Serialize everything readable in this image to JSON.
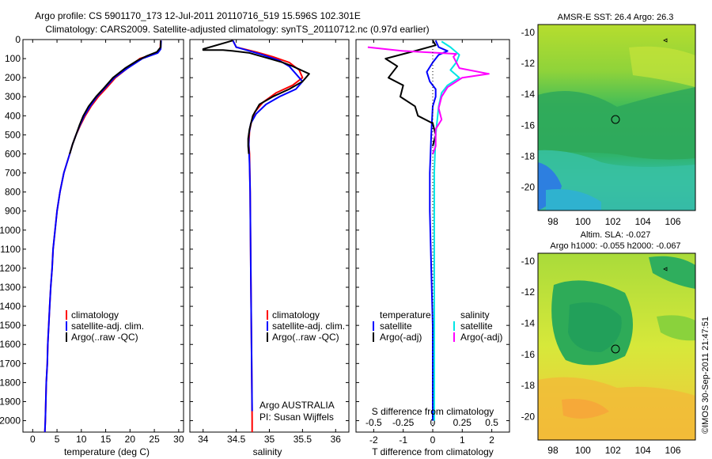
{
  "header": {
    "line1": "Argo profile: CS 5901170_173 12-Jul-2011 20110716_519 15.596S 102.301E",
    "line2": "Climatology: CARS2009. Satellite-adjusted climatology: synTS_20110712.nc (0.97d earlier)"
  },
  "right_titles": {
    "sst": "AMSR-E SST: 26.4  Argo: 26.3",
    "sla1": "Altim. SLA: -0.027",
    "sla2": "Argo h1000: -0.055 h2000: -0.067"
  },
  "side_text": "©IMOS 30-Sep-2011 21:47:51",
  "colors": {
    "clim": "#ff0000",
    "sat": "#0000ff",
    "argo": "#000000",
    "sat_s": "#00e5e5",
    "argo_s": "#ff00ff"
  },
  "chart_data": [
    {
      "type": "line",
      "xlabel": "temperature (deg C)",
      "ylabel": "",
      "xlim": [
        -2,
        31
      ],
      "ylim": [
        2060,
        0
      ],
      "xticks": [
        0,
        5,
        10,
        15,
        20,
        25,
        30
      ],
      "yticks": [
        0,
        100,
        200,
        300,
        400,
        500,
        600,
        700,
        800,
        900,
        1000,
        1100,
        1200,
        1300,
        1400,
        1500,
        1600,
        1700,
        1800,
        1900,
        2000
      ],
      "legend": {
        "position": "lower-left",
        "entries": [
          "climatology",
          "satellite-adj. clim.",
          "Argo(..raw -QC)"
        ]
      },
      "series": [
        {
          "name": "climatology",
          "color": "#ff0000",
          "points": [
            [
              26.3,
              5
            ],
            [
              26.2,
              50
            ],
            [
              25.5,
              70
            ],
            [
              22,
              100
            ],
            [
              19.5,
              150
            ],
            [
              17,
              200
            ],
            [
              15.3,
              250
            ],
            [
              13.5,
              300
            ],
            [
              12,
              350
            ],
            [
              10.8,
              400
            ],
            [
              9.8,
              450
            ],
            [
              8.9,
              500
            ],
            [
              8.2,
              550
            ],
            [
              7.6,
              600
            ],
            [
              6.4,
              700
            ],
            [
              5.6,
              800
            ],
            [
              5,
              900
            ],
            [
              4.6,
              1000
            ],
            [
              4.2,
              1100
            ],
            [
              4,
              1200
            ],
            [
              3.7,
              1300
            ],
            [
              3.5,
              1400
            ],
            [
              3.3,
              1500
            ],
            [
              3.1,
              1600
            ],
            [
              3,
              1700
            ],
            [
              2.8,
              1800
            ],
            [
              2.7,
              1900
            ],
            [
              2.6,
              2000
            ],
            [
              2.5,
              2060
            ]
          ]
        },
        {
          "name": "satellite-adj. clim.",
          "color": "#0000ff",
          "points": [
            [
              26.4,
              5
            ],
            [
              26.3,
              50
            ],
            [
              25.7,
              70
            ],
            [
              22.5,
              100
            ],
            [
              19.5,
              150
            ],
            [
              16.8,
              200
            ],
            [
              15,
              250
            ],
            [
              13.2,
              300
            ],
            [
              11.8,
              350
            ],
            [
              10.6,
              400
            ],
            [
              9.7,
              450
            ],
            [
              8.9,
              500
            ],
            [
              8.2,
              550
            ],
            [
              7.6,
              600
            ],
            [
              6.4,
              700
            ],
            [
              5.6,
              800
            ],
            [
              5,
              900
            ],
            [
              4.6,
              1000
            ],
            [
              4.2,
              1100
            ],
            [
              4,
              1200
            ],
            [
              3.7,
              1300
            ],
            [
              3.5,
              1400
            ],
            [
              3.3,
              1500
            ],
            [
              3.1,
              1600
            ],
            [
              3,
              1700
            ],
            [
              2.8,
              1800
            ],
            [
              2.7,
              1900
            ],
            [
              2.6,
              2000
            ],
            [
              2.5,
              2060
            ]
          ]
        },
        {
          "name": "Argo(..raw -QC)",
          "color": "#000000",
          "points": [
            [
              26.3,
              5
            ],
            [
              26.3,
              40
            ],
            [
              25.5,
              65
            ],
            [
              23.5,
              85
            ],
            [
              21.5,
              110
            ],
            [
              19,
              150
            ],
            [
              16.5,
              200
            ],
            [
              14.8,
              250
            ],
            [
              13,
              300
            ],
            [
              11.5,
              350
            ],
            [
              10.4,
              400
            ],
            [
              9.6,
              450
            ],
            [
              8.9,
              500
            ],
            [
              8.2,
              550
            ],
            [
              7.6,
              600
            ]
          ]
        }
      ]
    },
    {
      "type": "line",
      "xlabel": "salinity",
      "xlim": [
        33.8,
        36.2
      ],
      "ylim": [
        2060,
        0
      ],
      "xticks": [
        34,
        34.5,
        35,
        35.5,
        36
      ],
      "legend": {
        "position": "lower-left",
        "entries": [
          "climatology",
          "satellite-adj. clim.",
          "Argo(..raw -QC)"
        ]
      },
      "annotations": [
        "Argo AUSTRALIA",
        "PI: Susan Wijffels"
      ],
      "series": [
        {
          "name": "climatology",
          "color": "#ff0000",
          "points": [
            [
              34.45,
              5
            ],
            [
              34.5,
              40
            ],
            [
              34.8,
              65
            ],
            [
              35.05,
              90
            ],
            [
              35.3,
              120
            ],
            [
              35.45,
              160
            ],
            [
              35.5,
              200
            ],
            [
              35.35,
              240
            ],
            [
              35.1,
              280
            ],
            [
              34.9,
              330
            ],
            [
              34.78,
              380
            ],
            [
              34.73,
              430
            ],
            [
              34.7,
              480
            ],
            [
              34.69,
              550
            ],
            [
              34.7,
              600
            ],
            [
              34.71,
              800
            ],
            [
              34.72,
              1200
            ],
            [
              34.73,
              1600
            ],
            [
              34.74,
              2000
            ],
            [
              34.74,
              2060
            ]
          ]
        },
        {
          "name": "satellite-adj. clim.",
          "color": "#0000ff",
          "points": [
            [
              34.45,
              5
            ],
            [
              34.5,
              40
            ],
            [
              34.7,
              60
            ],
            [
              34.9,
              80
            ],
            [
              35.15,
              110
            ],
            [
              35.3,
              140
            ],
            [
              35.4,
              180
            ],
            [
              35.5,
              220
            ],
            [
              35.4,
              260
            ],
            [
              35.15,
              300
            ],
            [
              34.95,
              340
            ],
            [
              34.8,
              390
            ],
            [
              34.72,
              440
            ],
            [
              34.69,
              500
            ],
            [
              34.69,
              560
            ],
            [
              34.7,
              650
            ],
            [
              34.71,
              800
            ],
            [
              34.72,
              1200
            ],
            [
              34.73,
              1600
            ],
            [
              34.74,
              1950
            ]
          ]
        },
        {
          "name": "Argo(..raw -QC)",
          "color": "#000000",
          "points": [
            [
              34.45,
              5
            ],
            [
              34,
              50
            ],
            [
              34.0,
              55
            ],
            [
              34.3,
              55
            ],
            [
              34.45,
              60
            ],
            [
              34.7,
              70
            ],
            [
              35.0,
              100
            ],
            [
              35.2,
              120
            ],
            [
              35.35,
              140
            ],
            [
              35.6,
              180
            ],
            [
              35.5,
              220
            ],
            [
              35.3,
              260
            ],
            [
              35.05,
              300
            ],
            [
              34.85,
              340
            ],
            [
              34.75,
              400
            ],
            [
              34.7,
              470
            ],
            [
              34.68,
              520
            ],
            [
              34.68,
              560
            ],
            [
              34.69,
              600
            ]
          ]
        }
      ]
    },
    {
      "type": "line",
      "xlabel": "T difference from climatology",
      "x2label": "S difference from climatology",
      "xlim": [
        -2.6,
        2.6
      ],
      "ylim": [
        2060,
        0
      ],
      "xticks": [
        -2,
        -1,
        0,
        1,
        2
      ],
      "x2ticks": [
        "-0.5",
        "-0.25",
        "0",
        "0.25",
        "0.5"
      ],
      "x2tick_values": [
        -2,
        -1,
        0,
        1,
        2
      ],
      "legend": {
        "position": "lower",
        "entries": [
          "temperature",
          "satellite",
          "Argo(-adj)",
          "salinity",
          "satellite",
          "Argo(-adj)"
        ]
      },
      "series": [
        {
          "name": "satellite",
          "color": "#0000ff",
          "points": [
            [
              0.1,
              5
            ],
            [
              0.2,
              40
            ],
            [
              0.5,
              60
            ],
            [
              0.2,
              80
            ],
            [
              0,
              120
            ],
            [
              -0.2,
              170
            ],
            [
              -0.1,
              220
            ],
            [
              0.1,
              260
            ],
            [
              0.1,
              300
            ],
            [
              0,
              350
            ],
            [
              -0.05,
              500
            ],
            [
              -0.1,
              700
            ],
            [
              -0.1,
              900
            ],
            [
              -0.05,
              1200
            ],
            [
              0,
              1500
            ],
            [
              0,
              2000
            ]
          ]
        },
        {
          "name": "Argo(-adj)",
          "color": "#000000",
          "points": [
            [
              0,
              5
            ],
            [
              0.1,
              30
            ],
            [
              -0.6,
              60
            ],
            [
              -1.6,
              100
            ],
            [
              -1.2,
              140
            ],
            [
              -1.5,
              200
            ],
            [
              -1.0,
              240
            ],
            [
              -1.1,
              300
            ],
            [
              -0.6,
              350
            ],
            [
              -0.5,
              400
            ],
            [
              0,
              440
            ],
            [
              0.1,
              500
            ],
            [
              0,
              560
            ]
          ]
        },
        {
          "name": "satellite",
          "color": "#00e5e5",
          "points": [
            [
              0.3,
              10
            ],
            [
              0.6,
              40
            ],
            [
              0.9,
              80
            ],
            [
              0.8,
              120
            ],
            [
              0.6,
              160
            ],
            [
              0.9,
              200
            ],
            [
              0.5,
              240
            ],
            [
              0.3,
              280
            ],
            [
              0.2,
              350
            ],
            [
              0.1,
              500
            ],
            [
              0.05,
              700
            ],
            [
              0.05,
              1000
            ],
            [
              0.05,
              1500
            ],
            [
              0.05,
              2000
            ]
          ]
        },
        {
          "name": "Argo(-adj)",
          "color": "#ff00ff",
          "points": [
            [
              -2.2,
              40
            ],
            [
              -1.0,
              60
            ],
            [
              0.2,
              70
            ],
            [
              0.8,
              75
            ],
            [
              0.7,
              90
            ],
            [
              0.9,
              150
            ],
            [
              1.9,
              180
            ],
            [
              1.0,
              200
            ],
            [
              0.5,
              250
            ],
            [
              0.3,
              300
            ],
            [
              0.2,
              360
            ],
            [
              0.3,
              420
            ],
            [
              0.1,
              470
            ],
            [
              0.1,
              560
            ],
            [
              0,
              600
            ]
          ]
        }
      ]
    },
    {
      "type": "heatmap",
      "title": "AMSR-E SST: 26.4  Argo: 26.3",
      "xlim": [
        97,
        107.5
      ],
      "ylim": [
        -21.5,
        -9.5
      ],
      "xticks": [
        98,
        100,
        102,
        104,
        106
      ],
      "yticks": [
        -10,
        -12,
        -14,
        -16,
        -18,
        -20
      ],
      "marker": {
        "lon": 102.3,
        "lat": -15.6
      }
    },
    {
      "type": "heatmap",
      "title": "Altim. SLA: -0.027",
      "xlim": [
        97,
        107.5
      ],
      "ylim": [
        -21.5,
        -9.5
      ],
      "xticks": [
        98,
        100,
        102,
        104,
        106
      ],
      "yticks": [
        -10,
        -12,
        -14,
        -16,
        -18,
        -20
      ],
      "marker": {
        "lon": 102.3,
        "lat": -15.6
      }
    }
  ]
}
